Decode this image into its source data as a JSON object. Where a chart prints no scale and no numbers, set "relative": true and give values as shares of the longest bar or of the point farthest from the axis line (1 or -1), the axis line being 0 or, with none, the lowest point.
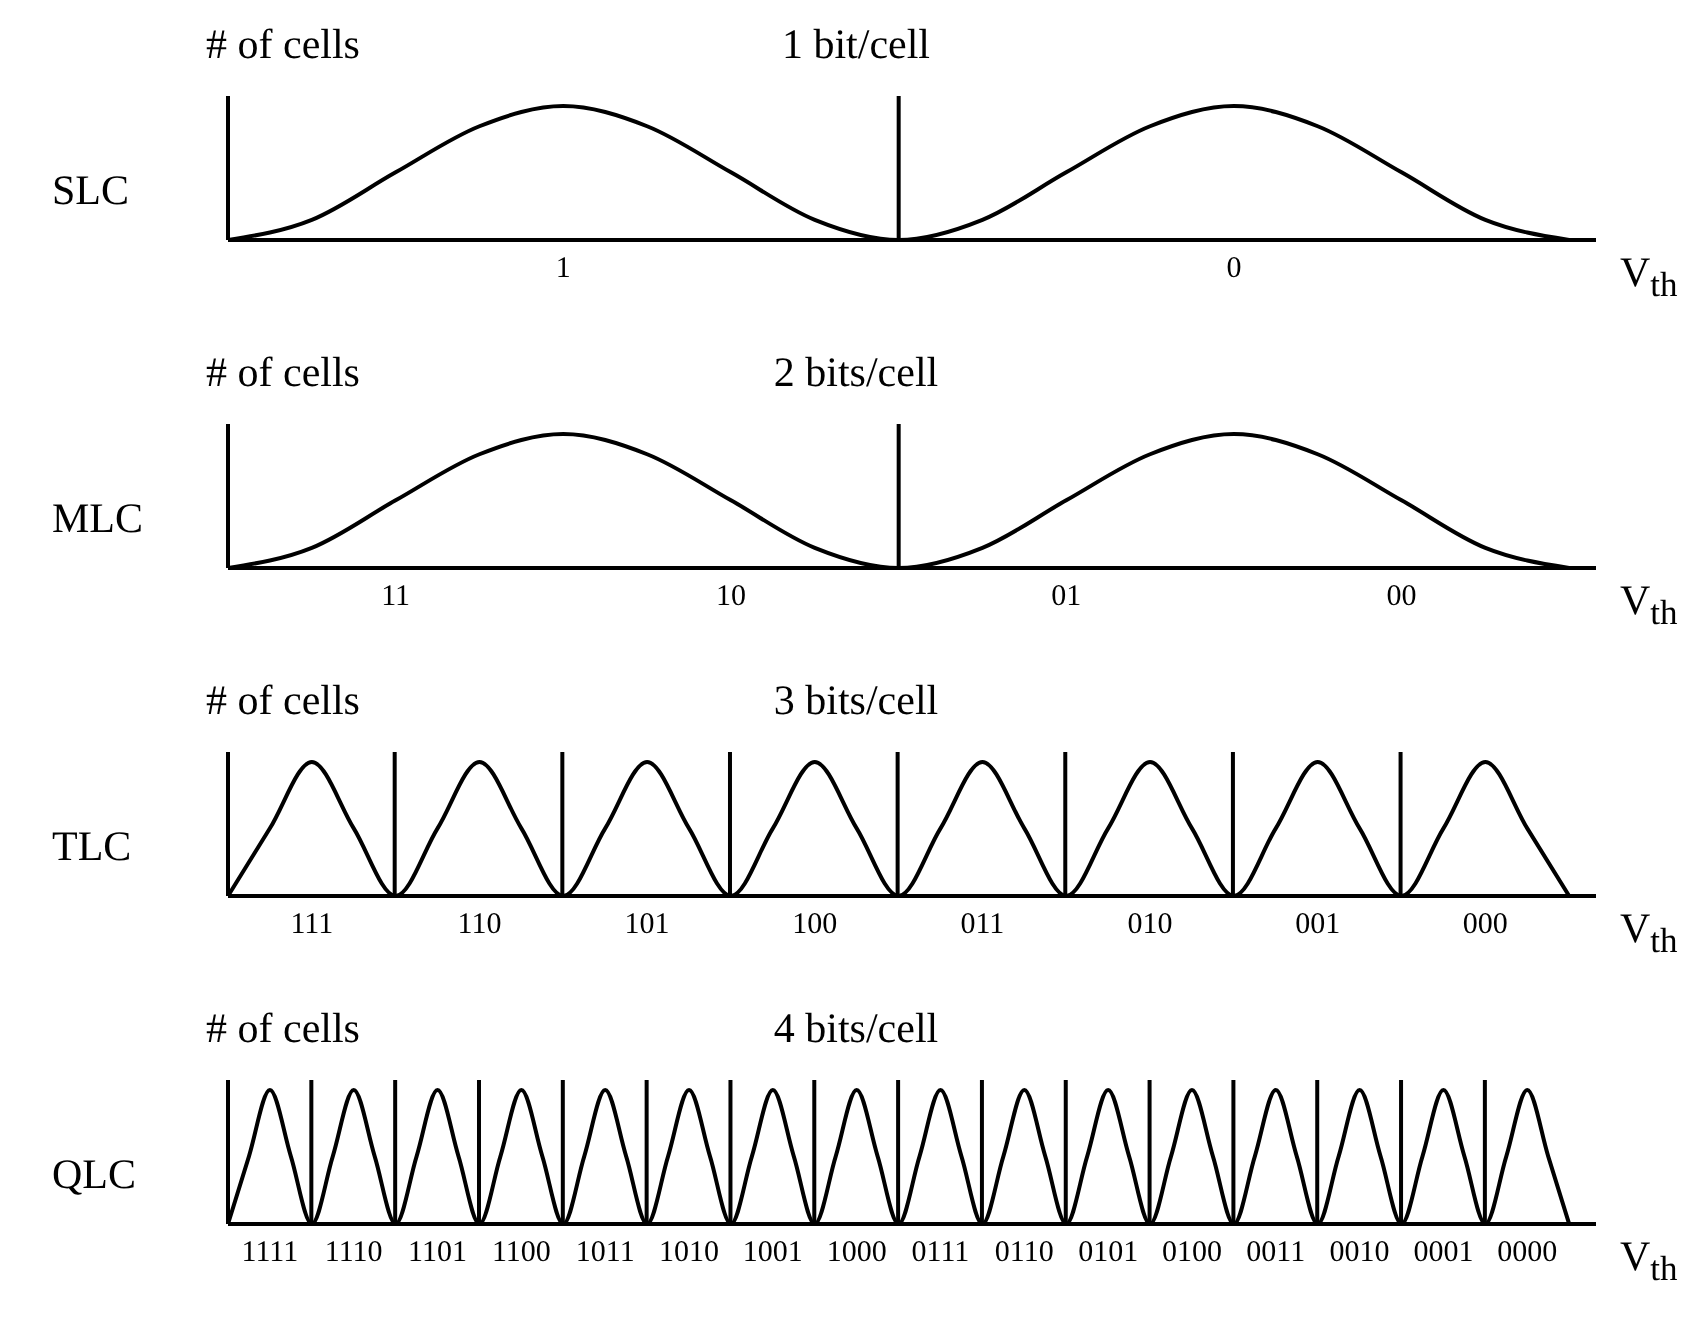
{
  "chart_data": [
    {
      "type": "line",
      "title": "1 bit/cell",
      "ylabel": "# of cells",
      "xlabel": "V$_{th}$",
      "annotations": [
        "SLC"
      ],
      "relative": true,
      "categories": [
        null,
        null,
        null,
        null,
        "1",
        null,
        null,
        null,
        null,
        null,
        null,
        null,
        "0",
        null,
        null,
        null,
        null
      ],
      "series": [
        {
          "color": "#000000",
          "values": [
            0,
            0.14,
            0.47,
            0.79,
            0.93,
            0.79,
            0.47,
            0.14,
            0,
            0.14,
            0.47,
            0.79,
            0.93,
            0.79,
            0.47,
            0.14,
            0
          ]
        },
        {
          "type": "bar",
          "color": "#000000",
          "values": [
            null,
            null,
            null,
            null,
            null,
            null,
            null,
            null,
            1,
            null,
            null,
            null,
            null,
            null,
            null,
            null,
            null
          ]
        }
      ]
    },
    {
      "type": "line",
      "title": "2 bits/cell",
      "ylabel": "# of cells",
      "xlabel": "V$_{th}$",
      "annotations": [
        "MLC"
      ],
      "relative": true,
      "categories": [
        null,
        null,
        "11",
        null,
        null,
        null,
        "10",
        null,
        null,
        null,
        "01",
        null,
        null,
        null,
        "00",
        null,
        null
      ],
      "series": [
        {
          "color": "#000000",
          "values": [
            0,
            0.14,
            0.47,
            0.79,
            0.93,
            0.79,
            0.47,
            0.14,
            0,
            0.14,
            0.47,
            0.79,
            0.93,
            0.79,
            0.47,
            0.14,
            0
          ]
        },
        {
          "type": "bar",
          "color": "#000000",
          "values": [
            null,
            null,
            null,
            null,
            null,
            null,
            null,
            null,
            1,
            null,
            null,
            null,
            null,
            null,
            null,
            null,
            null
          ]
        }
      ]
    },
    {
      "type": "line",
      "title": "3 bits/cell",
      "ylabel": "# of cells",
      "xlabel": "V$_{th}$",
      "annotations": [
        "TLC"
      ],
      "relative": true,
      "categories": [
        null,
        null,
        "111",
        null,
        null,
        null,
        "110",
        null,
        null,
        null,
        "101",
        null,
        null,
        null,
        "100",
        null,
        null,
        null,
        "011",
        null,
        null,
        null,
        "010",
        null,
        null,
        null,
        "001",
        null,
        null,
        null,
        "000",
        null,
        null
      ],
      "series": [
        {
          "color": "#000000",
          "values": [
            0,
            0.47,
            0.93,
            0.47,
            0,
            0.47,
            0.93,
            0.47,
            0,
            0.47,
            0.93,
            0.47,
            0,
            0.47,
            0.93,
            0.47,
            0,
            0.47,
            0.93,
            0.47,
            0,
            0.47,
            0.93,
            0.47,
            0,
            0.47,
            0.93,
            0.47,
            0,
            0.47,
            0.93,
            0.47,
            0
          ]
        },
        {
          "type": "bar",
          "color": "#000000",
          "values": [
            null,
            null,
            null,
            null,
            1,
            null,
            null,
            null,
            1,
            null,
            null,
            null,
            1,
            null,
            null,
            null,
            1,
            null,
            null,
            null,
            1,
            null,
            null,
            null,
            1,
            null,
            null,
            null,
            1,
            null,
            null,
            null,
            null
          ]
        }
      ]
    },
    {
      "type": "line",
      "title": "4 bits/cell",
      "ylabel": "# of cells",
      "xlabel": "V$_{th}$",
      "annotations": [
        "QLC"
      ],
      "relative": true,
      "categories": [
        null,
        null,
        "1111",
        null,
        null,
        null,
        "1110",
        null,
        null,
        null,
        "1101",
        null,
        null,
        null,
        "1100",
        null,
        null,
        null,
        "1011",
        null,
        null,
        null,
        "1010",
        null,
        null,
        null,
        "1001",
        null,
        null,
        null,
        "1000",
        null,
        null,
        null,
        "0111",
        null,
        null,
        null,
        "0110",
        null,
        null,
        null,
        "0101",
        null,
        null,
        null,
        "0100",
        null,
        null,
        null,
        "0011",
        null,
        null,
        null,
        "0010",
        null,
        null,
        null,
        "0001",
        null,
        null,
        null,
        "0000",
        null,
        null
      ],
      "series": [
        {
          "color": "#000000",
          "values": [
            0,
            0.47,
            0.93,
            0.47,
            0,
            0.47,
            0.93,
            0.47,
            0,
            0.47,
            0.93,
            0.47,
            0,
            0.47,
            0.93,
            0.47,
            0,
            0.47,
            0.93,
            0.47,
            0,
            0.47,
            0.93,
            0.47,
            0,
            0.47,
            0.93,
            0.47,
            0,
            0.47,
            0.93,
            0.47,
            0,
            0.47,
            0.93,
            0.47,
            0,
            0.47,
            0.93,
            0.47,
            0,
            0.47,
            0.93,
            0.47,
            0,
            0.47,
            0.93,
            0.47,
            0,
            0.47,
            0.93,
            0.47,
            0,
            0.47,
            0.93,
            0.47,
            0,
            0.47,
            0.93,
            0.47,
            0,
            0.47,
            0.93,
            0.47,
            0
          ]
        },
        {
          "type": "bar",
          "color": "#000000",
          "values": [
            null,
            null,
            null,
            null,
            1,
            null,
            null,
            null,
            1,
            null,
            null,
            null,
            1,
            null,
            null,
            null,
            1,
            null,
            null,
            null,
            1,
            null,
            null,
            null,
            1,
            null,
            null,
            null,
            1,
            null,
            null,
            null,
            1,
            null,
            null,
            null,
            1,
            null,
            null,
            null,
            1,
            null,
            null,
            null,
            1,
            null,
            null,
            null,
            1,
            null,
            null,
            null,
            1,
            null,
            null,
            null,
            1,
            null,
            null,
            null,
            1,
            null,
            null,
            null,
            null
          ]
        }
      ]
    }
  ]
}
